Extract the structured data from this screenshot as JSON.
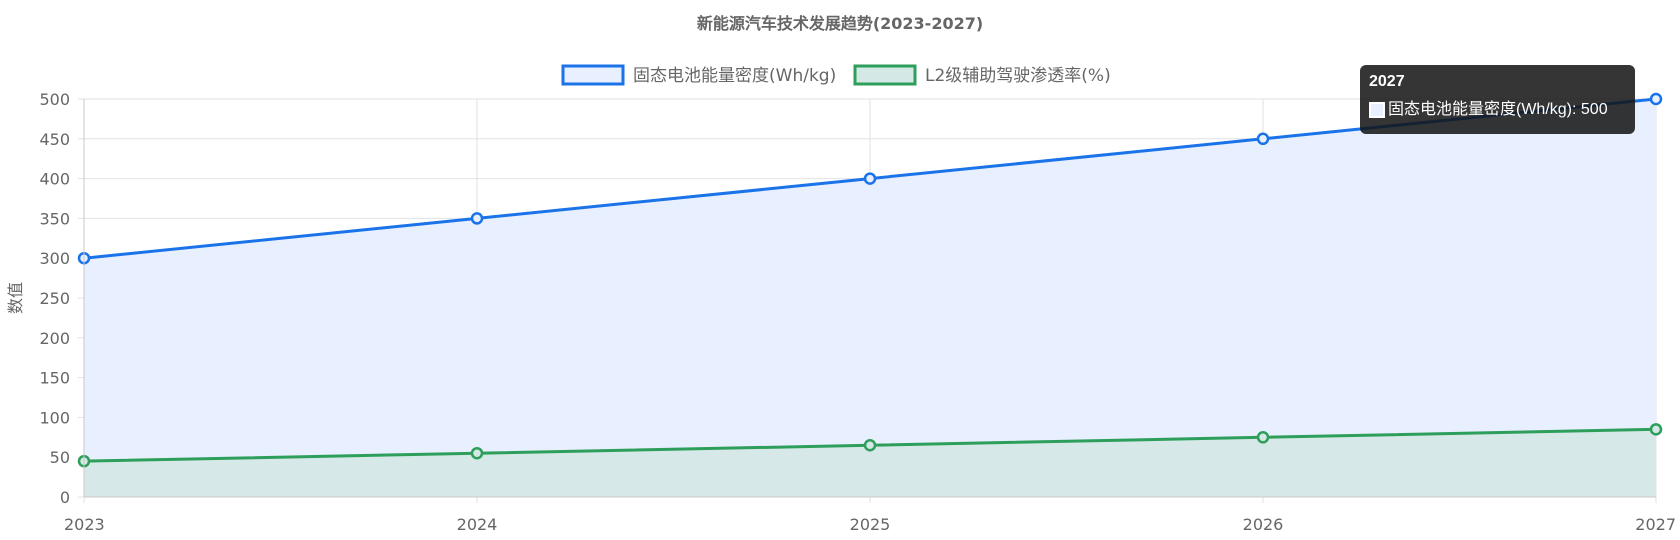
{
  "chart_data": {
    "type": "area",
    "title": "新能源汽车技术发展趋势(2023-2027)",
    "ylabel": "数值",
    "xlabel": "",
    "categories": [
      "2023",
      "2024",
      "2025",
      "2026",
      "2027"
    ],
    "ylim": [
      0,
      500
    ],
    "yticks": [
      "0",
      "50",
      "100",
      "150",
      "200",
      "250",
      "300",
      "350",
      "400",
      "450",
      "500"
    ],
    "grid": true,
    "legend_position": "top",
    "series": [
      {
        "name": "固态电池能量密度(Wh/kg)",
        "values": [
          300,
          350,
          400,
          450,
          500
        ],
        "color": "#1a73e8",
        "fill": "#e8efff"
      },
      {
        "name": "L2级辅助驾驶渗透率(%)",
        "values": [
          45,
          55,
          65,
          75,
          85
        ],
        "color": "#2e9e5b",
        "fill": "#d4e8e5"
      }
    ]
  },
  "tooltip": {
    "title": "2027",
    "label": "固态电池能量密度(Wh/kg): 500"
  }
}
